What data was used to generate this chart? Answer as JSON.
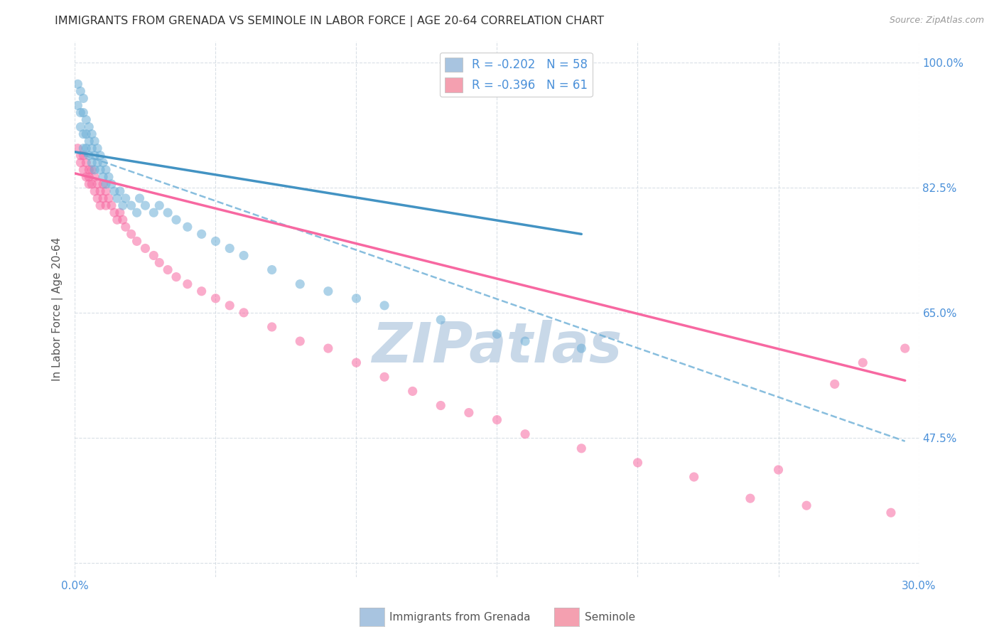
{
  "title": "IMMIGRANTS FROM GRENADA VS SEMINOLE IN LABOR FORCE | AGE 20-64 CORRELATION CHART",
  "source": "Source: ZipAtlas.com",
  "ylabel": "In Labor Force | Age 20-64",
  "x_min": 0.0,
  "x_max": 0.3,
  "y_min": 0.28,
  "y_max": 1.03,
  "x_ticks": [
    0.0,
    0.05,
    0.1,
    0.15,
    0.2,
    0.25,
    0.3
  ],
  "x_tick_labels": [
    "0.0%",
    "",
    "",
    "",
    "",
    "",
    "30.0%"
  ],
  "y_ticks": [
    0.3,
    0.475,
    0.65,
    0.825,
    1.0
  ],
  "y_tick_labels": [
    "",
    "47.5%",
    "65.0%",
    "82.5%",
    "100.0%"
  ],
  "legend1_label": "R = -0.202   N = 58",
  "legend2_label": "R = -0.396   N = 61",
  "legend_color1": "#a8c4e0",
  "legend_color2": "#f4a0b0",
  "watermark": "ZIPatlas",
  "watermark_color": "#c8d8e8",
  "grenada_color": "#6baed6",
  "seminole_color": "#f768a1",
  "trendline_grenada_color": "#4393c3",
  "trendline_seminole_solid_color": "#f768a1",
  "trendline_seminole_dashed_color": "#6baed6",
  "background_color": "#ffffff",
  "grid_color": "#d0d8e0",
  "legend_text_color": "#4a90d9",
  "right_axis_color": "#4a90d9",
  "grenada_x": [
    0.001,
    0.001,
    0.002,
    0.002,
    0.002,
    0.003,
    0.003,
    0.003,
    0.003,
    0.004,
    0.004,
    0.004,
    0.005,
    0.005,
    0.005,
    0.006,
    0.006,
    0.006,
    0.007,
    0.007,
    0.007,
    0.008,
    0.008,
    0.009,
    0.009,
    0.01,
    0.01,
    0.011,
    0.011,
    0.012,
    0.013,
    0.014,
    0.015,
    0.016,
    0.017,
    0.018,
    0.02,
    0.022,
    0.023,
    0.025,
    0.028,
    0.03,
    0.033,
    0.036,
    0.04,
    0.045,
    0.05,
    0.055,
    0.06,
    0.07,
    0.08,
    0.09,
    0.1,
    0.11,
    0.13,
    0.15,
    0.16,
    0.18
  ],
  "grenada_y": [
    0.97,
    0.94,
    0.96,
    0.93,
    0.91,
    0.95,
    0.93,
    0.9,
    0.88,
    0.92,
    0.9,
    0.88,
    0.91,
    0.89,
    0.87,
    0.9,
    0.88,
    0.86,
    0.89,
    0.87,
    0.85,
    0.88,
    0.86,
    0.87,
    0.85,
    0.86,
    0.84,
    0.85,
    0.83,
    0.84,
    0.83,
    0.82,
    0.81,
    0.82,
    0.8,
    0.81,
    0.8,
    0.79,
    0.81,
    0.8,
    0.79,
    0.8,
    0.79,
    0.78,
    0.77,
    0.76,
    0.75,
    0.74,
    0.73,
    0.71,
    0.69,
    0.68,
    0.67,
    0.66,
    0.64,
    0.62,
    0.61,
    0.6
  ],
  "seminole_x": [
    0.001,
    0.002,
    0.002,
    0.003,
    0.003,
    0.004,
    0.004,
    0.005,
    0.005,
    0.005,
    0.006,
    0.006,
    0.007,
    0.007,
    0.008,
    0.008,
    0.009,
    0.009,
    0.01,
    0.01,
    0.011,
    0.011,
    0.012,
    0.013,
    0.014,
    0.015,
    0.016,
    0.017,
    0.018,
    0.02,
    0.022,
    0.025,
    0.028,
    0.03,
    0.033,
    0.036,
    0.04,
    0.045,
    0.05,
    0.055,
    0.06,
    0.07,
    0.08,
    0.09,
    0.1,
    0.11,
    0.12,
    0.13,
    0.14,
    0.15,
    0.16,
    0.18,
    0.2,
    0.22,
    0.24,
    0.25,
    0.26,
    0.27,
    0.28,
    0.29,
    0.295
  ],
  "seminole_y": [
    0.88,
    0.87,
    0.86,
    0.87,
    0.85,
    0.86,
    0.84,
    0.85,
    0.84,
    0.83,
    0.85,
    0.83,
    0.84,
    0.82,
    0.83,
    0.81,
    0.82,
    0.8,
    0.83,
    0.81,
    0.82,
    0.8,
    0.81,
    0.8,
    0.79,
    0.78,
    0.79,
    0.78,
    0.77,
    0.76,
    0.75,
    0.74,
    0.73,
    0.72,
    0.71,
    0.7,
    0.69,
    0.68,
    0.67,
    0.66,
    0.65,
    0.63,
    0.61,
    0.6,
    0.58,
    0.56,
    0.54,
    0.52,
    0.51,
    0.5,
    0.48,
    0.46,
    0.44,
    0.42,
    0.39,
    0.43,
    0.38,
    0.55,
    0.58,
    0.37,
    0.6
  ],
  "grenada_trend_x0": 0.0,
  "grenada_trend_x1": 0.18,
  "grenada_trend_y0": 0.875,
  "grenada_trend_y1": 0.76,
  "seminole_trend_x0": 0.0,
  "seminole_trend_x1": 0.295,
  "seminole_trend_y0": 0.845,
  "seminole_trend_y1": 0.555,
  "dashed_trend_x0": 0.0,
  "dashed_trend_x1": 0.295,
  "dashed_trend_y0": 0.875,
  "dashed_trend_y1": 0.47
}
